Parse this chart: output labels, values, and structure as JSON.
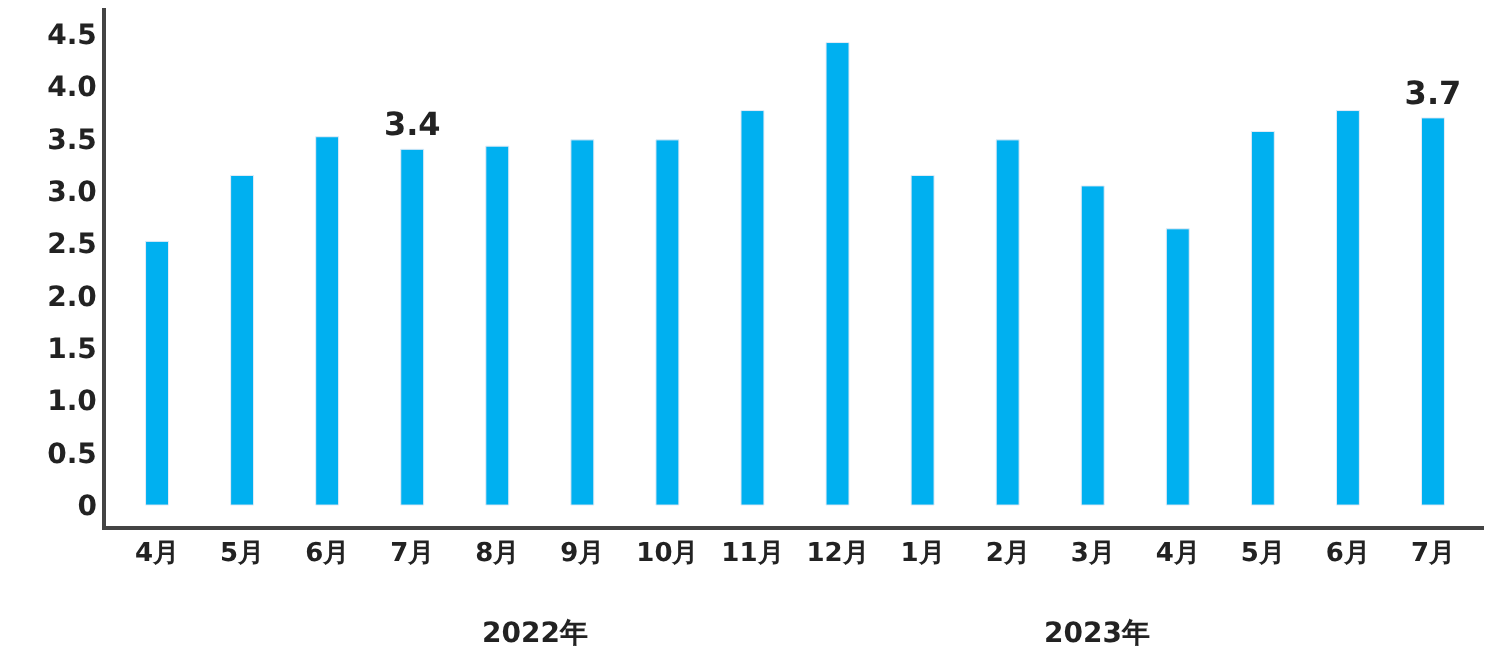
{
  "chart_data": {
    "type": "bar",
    "categories": [
      "4月",
      "5月",
      "6月",
      "7月",
      "8月",
      "9月",
      "10月",
      "11月",
      "12月",
      "1月",
      "2月",
      "3月",
      "4月",
      "5月",
      "6月",
      "7月"
    ],
    "values": [
      2.52,
      3.15,
      3.52,
      3.4,
      3.43,
      3.49,
      3.49,
      3.77,
      4.42,
      3.15,
      3.49,
      3.05,
      2.64,
      3.57,
      3.77,
      3.7
    ],
    "value_labels": [
      null,
      null,
      null,
      "3.4",
      null,
      null,
      null,
      null,
      null,
      null,
      null,
      null,
      null,
      null,
      null,
      "3.7"
    ],
    "color": "#00b0f0",
    "ylim": [
      -0.2,
      4.75
    ],
    "yticks": [
      0,
      0.5,
      {
        "value": 1,
        "label": "1.0"
      },
      1.5,
      {
        "value": 2,
        "label": "2.0"
      },
      2.5,
      {
        "value": 3,
        "label": "3.0"
      },
      3.5,
      {
        "value": 4,
        "label": "4.0"
      },
      4.5
    ],
    "annotations": [
      "2022年",
      "2023年"
    ]
  }
}
